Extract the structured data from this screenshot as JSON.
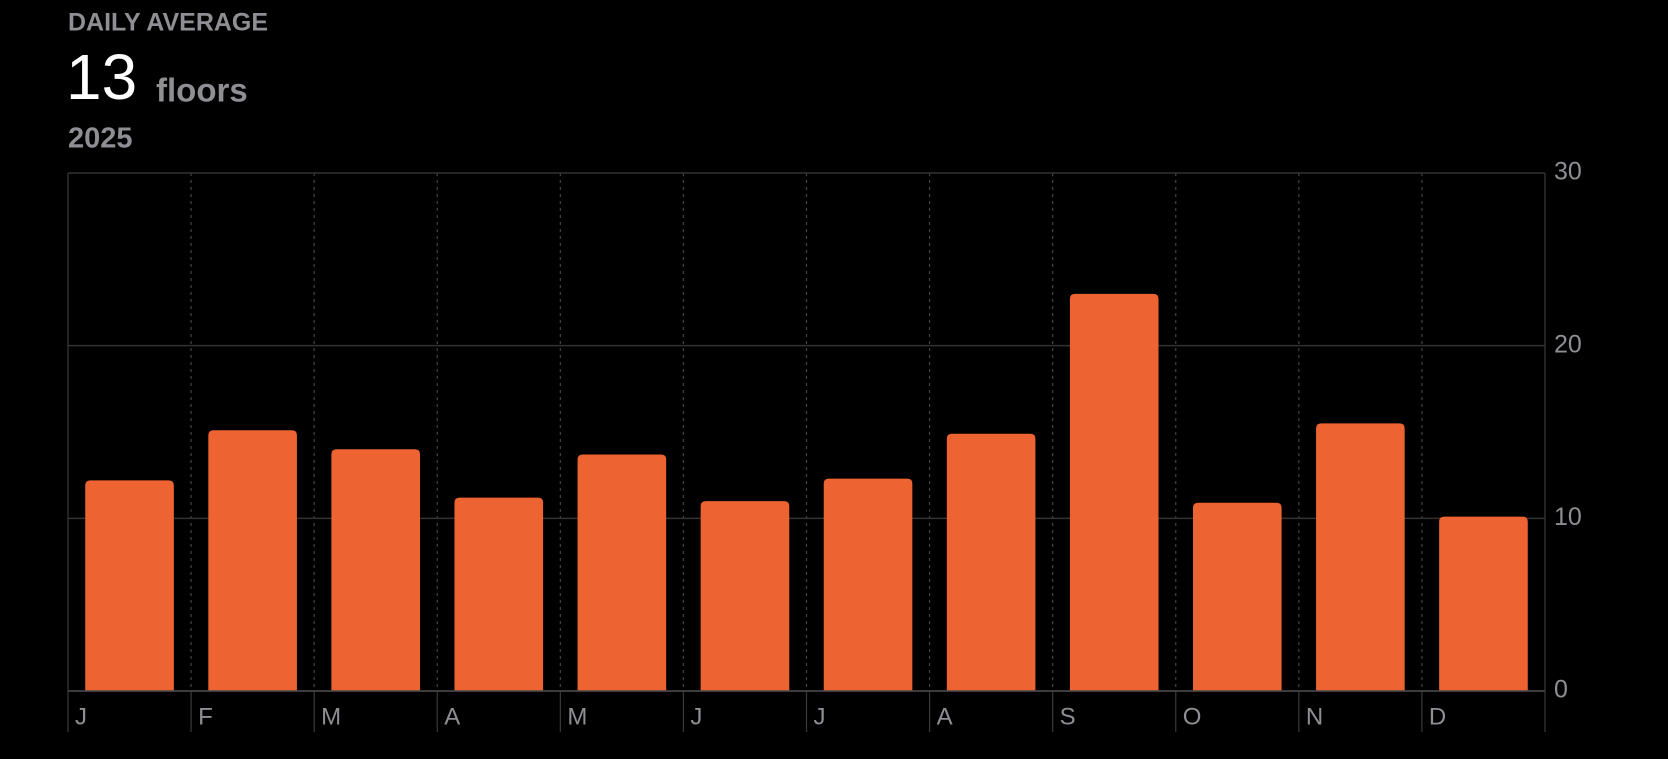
{
  "chart_data": {
    "type": "bar",
    "title": "DAILY AVERAGE",
    "summary_value": 13,
    "summary_unit": "floors",
    "subtitle": "2025",
    "categories": [
      "J",
      "F",
      "M",
      "A",
      "M",
      "J",
      "J",
      "A",
      "S",
      "O",
      "N",
      "D"
    ],
    "values": [
      12.2,
      15.1,
      14.0,
      11.2,
      13.7,
      11.0,
      12.3,
      14.9,
      23.0,
      10.9,
      15.5,
      10.1
    ],
    "color": "#ed6332",
    "ylim": [
      0,
      30
    ],
    "yticks": [
      0,
      10,
      20,
      30
    ],
    "grid": true
  }
}
